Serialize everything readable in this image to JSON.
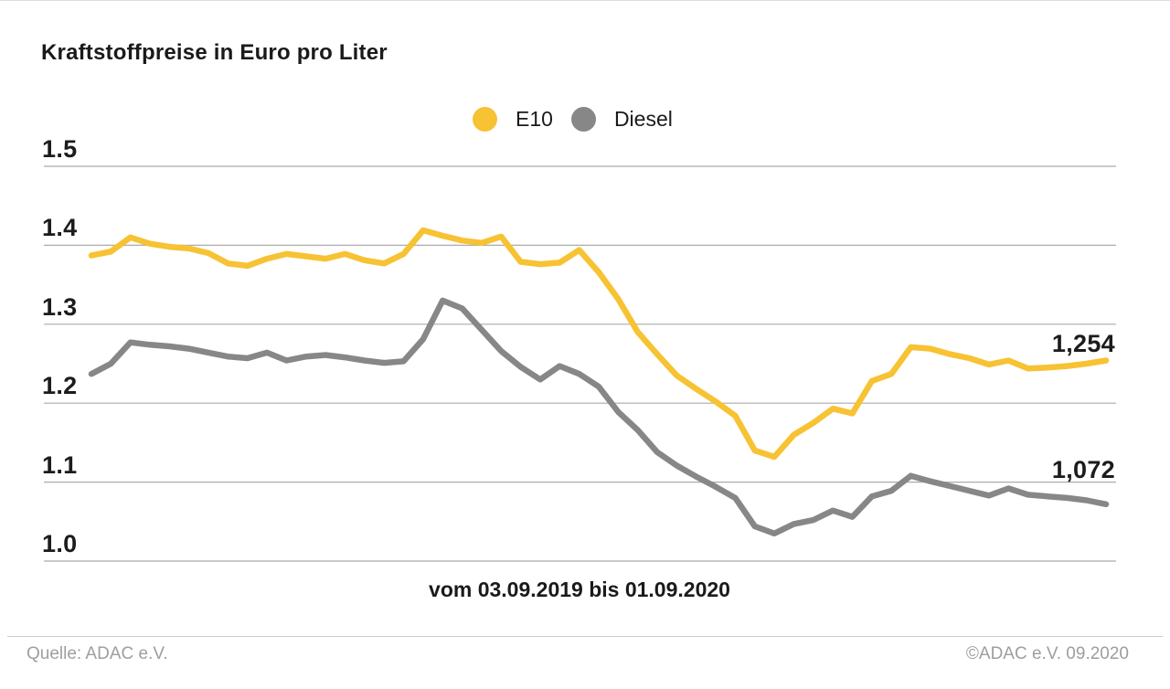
{
  "title": "Kraftstoffpreise in Euro pro Liter",
  "legend": {
    "position": "top-center",
    "items": [
      {
        "label": "E10",
        "color": "#F7C233"
      },
      {
        "label": "Diesel",
        "color": "#878787"
      }
    ]
  },
  "chart_data": {
    "type": "line",
    "title": "Kraftstoffpreise in Euro pro Liter",
    "xlabel": "vom 03.09.2019 bis 01.09.2020",
    "ylabel": "Euro pro Liter",
    "x_description": "weekly fuel price readings from 03.09.2019 to 01.09.2020",
    "ylim": [
      1.0,
      1.5
    ],
    "yticks": [
      "1.5",
      "1.4",
      "1.3",
      "1.2",
      "1.1",
      "1.0"
    ],
    "grid": true,
    "legend_position": "top-center",
    "series": [
      {
        "name": "E10",
        "color": "#F7C233",
        "end_label": "1,254",
        "final_value": 1.254,
        "values": [
          1.387,
          1.392,
          1.41,
          1.402,
          1.398,
          1.396,
          1.39,
          1.377,
          1.374,
          1.383,
          1.389,
          1.386,
          1.383,
          1.389,
          1.381,
          1.377,
          1.389,
          1.419,
          1.412,
          1.406,
          1.403,
          1.411,
          1.379,
          1.376,
          1.378,
          1.394,
          1.366,
          1.332,
          1.29,
          1.262,
          1.235,
          1.218,
          1.202,
          1.184,
          1.14,
          1.132,
          1.16,
          1.175,
          1.193,
          1.187,
          1.228,
          1.237,
          1.271,
          1.269,
          1.262,
          1.257,
          1.249,
          1.254,
          1.244,
          1.245,
          1.247,
          1.25,
          1.254
        ]
      },
      {
        "name": "Diesel",
        "color": "#878787",
        "end_label": "1,072",
        "final_value": 1.072,
        "values": [
          1.237,
          1.25,
          1.277,
          1.274,
          1.272,
          1.269,
          1.264,
          1.259,
          1.257,
          1.264,
          1.254,
          1.259,
          1.261,
          1.258,
          1.254,
          1.251,
          1.253,
          1.281,
          1.33,
          1.32,
          1.293,
          1.266,
          1.246,
          1.23,
          1.247,
          1.237,
          1.221,
          1.189,
          1.166,
          1.138,
          1.121,
          1.107,
          1.094,
          1.08,
          1.044,
          1.035,
          1.047,
          1.052,
          1.064,
          1.056,
          1.082,
          1.089,
          1.108,
          1.101,
          1.095,
          1.089,
          1.083,
          1.092,
          1.084,
          1.082,
          1.08,
          1.077,
          1.072
        ]
      }
    ]
  },
  "footer": {
    "source": "Quelle: ADAC e.V.",
    "copyright": "©ADAC e.V. 09.2020"
  }
}
